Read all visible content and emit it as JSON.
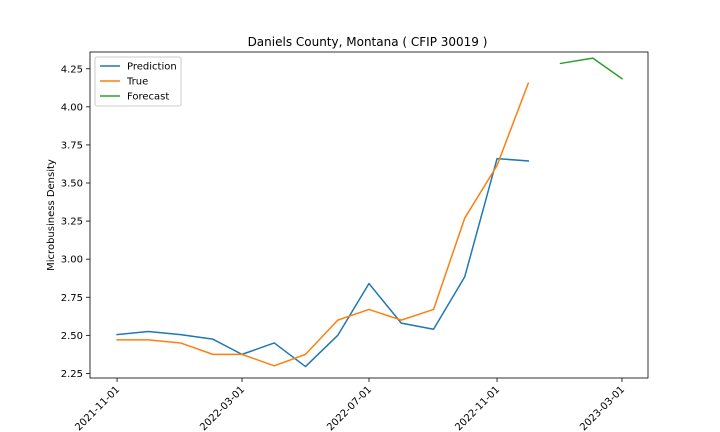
{
  "chart_data": {
    "type": "line",
    "title": "Daniels County, Montana ( CFIP 30019 )",
    "xlabel": "",
    "ylabel": "Microbusiness Density",
    "ylim": [
      2.22,
      4.36
    ],
    "xlim": [
      "2021-10-06",
      "2023-03-26"
    ],
    "x_ticks": [
      "2021-11-01",
      "2022-03-01",
      "2022-07-01",
      "2022-11-01",
      "2023-03-01"
    ],
    "y_ticks": [
      "2.25",
      "2.50",
      "2.75",
      "3.00",
      "3.25",
      "3.50",
      "3.75",
      "4.00",
      "4.25"
    ],
    "grid": false,
    "legend_position": "top-left",
    "series": [
      {
        "name": "Prediction",
        "color": "#1f77b4",
        "x": [
          "2021-11-01",
          "2021-12-01",
          "2022-01-01",
          "2022-02-01",
          "2022-03-01",
          "2022-04-01",
          "2022-05-01",
          "2022-06-01",
          "2022-07-01",
          "2022-08-01",
          "2022-09-01",
          "2022-10-01",
          "2022-11-01",
          "2022-12-01"
        ],
        "values": [
          2.505,
          2.525,
          2.505,
          2.475,
          2.375,
          2.45,
          2.295,
          2.5,
          2.84,
          2.58,
          2.54,
          2.885,
          3.66,
          3.645
        ]
      },
      {
        "name": "True",
        "color": "#ff7f0e",
        "x": [
          "2021-11-01",
          "2021-12-01",
          "2022-01-01",
          "2022-02-01",
          "2022-03-01",
          "2022-04-01",
          "2022-05-01",
          "2022-06-01",
          "2022-07-01",
          "2022-08-01",
          "2022-09-01",
          "2022-10-01",
          "2022-11-01",
          "2022-12-01"
        ],
        "values": [
          2.47,
          2.47,
          2.45,
          2.375,
          2.375,
          2.3,
          2.375,
          2.6,
          2.67,
          2.6,
          2.67,
          3.27,
          3.615,
          4.155
        ]
      },
      {
        "name": "Forecast",
        "color": "#2ca02c",
        "x": [
          "2023-01-01",
          "2023-02-01",
          "2023-03-01"
        ],
        "values": [
          4.285,
          4.32,
          4.185
        ]
      }
    ]
  }
}
